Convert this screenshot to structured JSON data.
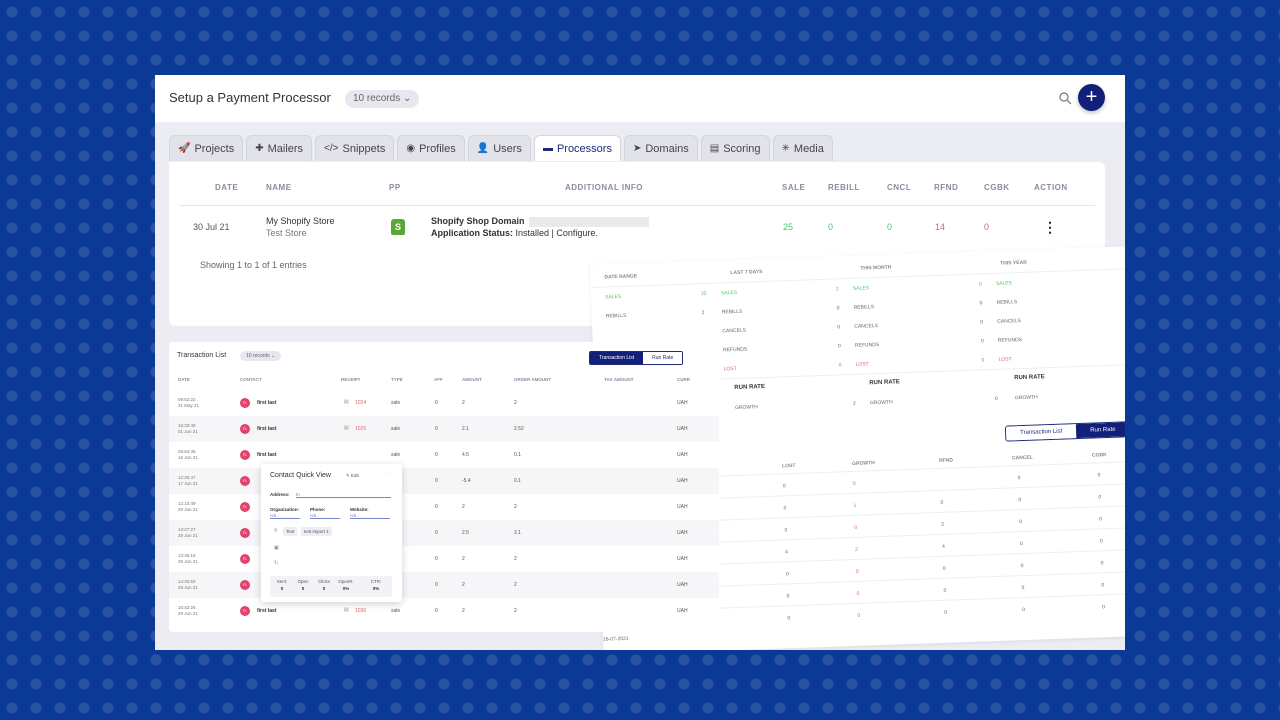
{
  "header": {
    "title": "Setup a Payment Processor",
    "records_label": "10 records",
    "add_label": "+"
  },
  "tabs": [
    {
      "label": "Projects",
      "icon": "rocket-icon"
    },
    {
      "label": "Mailers",
      "icon": "puzzle-icon"
    },
    {
      "label": "Snippets",
      "icon": "code-icon"
    },
    {
      "label": "Profiles",
      "icon": "profile-icon"
    },
    {
      "label": "Users",
      "icon": "user-icon"
    },
    {
      "label": "Processors",
      "icon": "card-icon",
      "active": true
    },
    {
      "label": "Domains",
      "icon": "cursor-icon"
    },
    {
      "label": "Scoring",
      "icon": "clipboard-icon"
    },
    {
      "label": "Media",
      "icon": "sparkle-icon"
    }
  ],
  "processors": {
    "columns": [
      "DATE",
      "NAME",
      "PP",
      "ADDITIONAL INFO",
      "SALE",
      "REBILL",
      "CNCL",
      "RFND",
      "CGBK",
      "ACTION"
    ],
    "row": {
      "date": "30 Jul 21",
      "name": "My Shopify Store",
      "subname": "Test Store",
      "info_label1": "Shopify Shop Domain",
      "info_label2": "Application Status:",
      "info_value2": "Installed | Configure.",
      "sale": "25",
      "rebill": "0",
      "cncl": "0",
      "rfnd": "14",
      "cgbk": "0"
    },
    "showing": "Showing 1 to 1 of 1 entries"
  },
  "stats": {
    "headers": [
      "DATE RANGE",
      "LAST 7 DAYS",
      "THIS MONTH",
      "THIS YEAR"
    ],
    "row1": [
      "SALES",
      "25",
      "SALES",
      "2",
      "SALES",
      "0",
      "SALES"
    ],
    "row2": [
      "REBILLS",
      "2",
      "REBILLS",
      "0",
      "REBILLS",
      "0",
      "REBILLS"
    ],
    "row3": [
      "CANCELS",
      "0",
      "CANCELS",
      "0",
      "CANCELS"
    ],
    "row4": [
      "REFUNDS",
      "0",
      "REFUNDS",
      "0",
      "REFUNDS"
    ],
    "row5": [
      "LOST",
      "0",
      "LOST",
      "0",
      "LOST"
    ],
    "runrate": [
      "RUN RATE",
      "RUN RATE",
      "RUN RATE"
    ],
    "growth": [
      "GROWTH",
      "2",
      "GROWTH",
      "0",
      "GROWTH"
    ],
    "tabs": [
      "Transaction List",
      "Run Rate"
    ],
    "cols": [
      "LOST",
      "GROWTH",
      "RFND",
      "CANCEL",
      "CGBK"
    ],
    "grid": [
      [
        "0",
        "0",
        "",
        "0",
        "0"
      ],
      [
        "0",
        "1",
        "0",
        "0",
        "0"
      ],
      [
        "3",
        "0",
        "2",
        "0",
        "0"
      ],
      [
        "4",
        "2",
        "4",
        "0",
        "0"
      ],
      [
        "0",
        "0",
        "0",
        "0",
        "0"
      ],
      [
        "0",
        "0",
        "0",
        "0",
        "0"
      ],
      [
        "0",
        "0",
        "0",
        "0",
        "0"
      ]
    ],
    "footer_date": "18-07-2021"
  },
  "transactions": {
    "title": "Transaction List",
    "records_label": "10 records",
    "tabs": [
      "Transaction List",
      "Run Rate"
    ],
    "columns": [
      "DATE",
      "CONTACT",
      "RECEIPT",
      "TYPE",
      "AFF",
      "AMOUNT",
      "ORDER AMOUNT",
      "TAX AMOUNT",
      "CURR"
    ],
    "rows": [
      {
        "time": "09:52:22",
        "date": "31 May 21",
        "initials": "FL",
        "name": "first last",
        "receipt": "1024",
        "type": "sale",
        "aff": "0",
        "amount": "2",
        "order": "2",
        "curr": "UAH"
      },
      {
        "time": "16:33:49",
        "date": "01 Jun 21",
        "initials": "FL",
        "name": "first last",
        "receipt": "1025",
        "type": "sale",
        "aff": "0",
        "amount": "2.1",
        "order": "2.52",
        "curr": "UAH"
      },
      {
        "time": "06:54:36",
        "date": "16 Jun 21",
        "initials": "FL",
        "name": "first last",
        "receipt": "",
        "type": "sale",
        "aff": "0",
        "amount": "4.5",
        "order": "0.1",
        "curr": "UAH"
      },
      {
        "time": "12:25:47",
        "date": "17 Jun 21",
        "initials": "FL",
        "name": "",
        "receipt": "",
        "type": "nds",
        "aff": "0",
        "amount": "-5.4",
        "order": "0.1",
        "curr": "UAH"
      },
      {
        "time": "12:10:49",
        "date": "29 Jun 21",
        "initials": "FL",
        "name": "",
        "receipt": "",
        "type": "",
        "aff": "0",
        "amount": "2",
        "order": "2",
        "curr": "UAH"
      },
      {
        "time": "13:27:27",
        "date": "29 Jun 21",
        "initials": "FL",
        "name": "",
        "receipt": "",
        "type": "",
        "aff": "0",
        "amount": "2.5",
        "order": "3.1",
        "curr": "UAH"
      },
      {
        "time": "13:46:15",
        "date": "29 Jun 21",
        "initials": "FL",
        "name": "",
        "receipt": "",
        "type": "",
        "aff": "0",
        "amount": "2",
        "order": "2",
        "curr": "UAH"
      },
      {
        "time": "14:33:53",
        "date": "29 Jun 21",
        "initials": "FL",
        "name": "",
        "receipt": "",
        "type": "",
        "aff": "0",
        "amount": "2",
        "order": "2",
        "curr": "UAH"
      },
      {
        "time": "15:42:26",
        "date": "29 Jun 21",
        "initials": "FL",
        "name": "first last",
        "receipt": "1036",
        "type": "sale",
        "aff": "0",
        "amount": "2",
        "order": "2",
        "curr": "UAH"
      }
    ]
  },
  "contact_quick_view": {
    "title": "Contact Quick View",
    "edit_label": "Edit",
    "address_label": "Address:",
    "address_value": "tn",
    "organization_label": "Organization:",
    "organization_value": "n/a",
    "phone_label": "Phone:",
    "phone_value": "n/a",
    "website_label": "Website:",
    "website_value": "n/a",
    "tags": [
      "Test",
      "test import 1"
    ],
    "stats": [
      {
        "label": "Sent:",
        "value": "0"
      },
      {
        "label": "Open",
        "value": "0"
      },
      {
        "label": "Clicks",
        "value": "0"
      },
      {
        "label": "OpenR:",
        "value": "0%"
      },
      {
        "label": "CTR:",
        "value": "0%"
      }
    ]
  }
}
